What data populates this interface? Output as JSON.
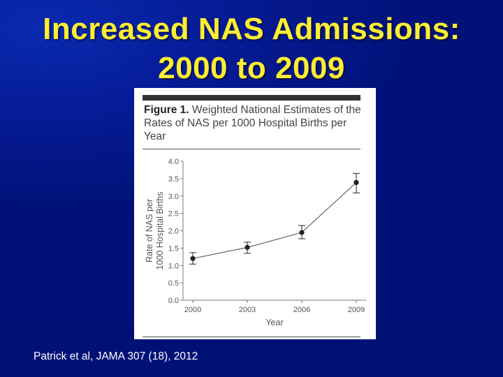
{
  "slide": {
    "title_line1": "Increased NAS Admissions:",
    "title_line2": "2000 to 2009",
    "citation": "Patrick et al, JAMA 307 (18), 2012"
  },
  "figure": {
    "label": "Figure 1.",
    "caption": "Weighted National Estimates of the Rates of NAS per 1000 Hospital Births per Year"
  },
  "colors": {
    "slide_background": "#00127a",
    "title": "#ffee33",
    "series": "#222222"
  },
  "chart_data": {
    "type": "line",
    "xlabel": "Year",
    "ylabel_line1": "Rate of NAS per",
    "ylabel_line2": "1000 Hospital Births",
    "x": [
      "2000",
      "2003",
      "2006",
      "2009"
    ],
    "values": [
      1.2,
      1.52,
      1.95,
      3.39
    ],
    "error_low": [
      1.04,
      1.35,
      1.77,
      3.09
    ],
    "error_high": [
      1.37,
      1.67,
      2.15,
      3.65
    ],
    "ylim": [
      0,
      4.0
    ],
    "yticks": [
      "0.0",
      "0.5",
      "1.0",
      "1.5",
      "2.0",
      "2.5",
      "3.0",
      "3.5",
      "4.0"
    ],
    "grid": false
  }
}
